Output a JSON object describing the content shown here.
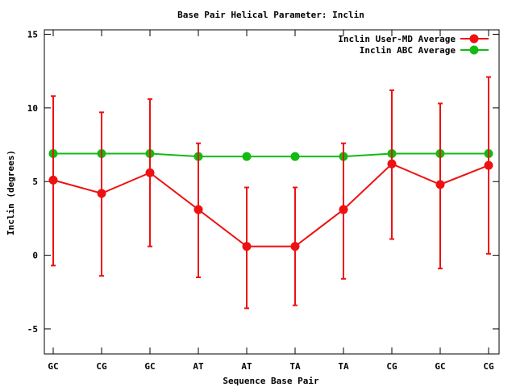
{
  "chart_data": {
    "type": "line",
    "title": "Base Pair Helical Parameter: Inclin",
    "xlabel": "Sequence Base Pair",
    "ylabel": "Inclin (degrees)",
    "categories": [
      "GC",
      "CG",
      "GC",
      "AT",
      "AT",
      "TA",
      "TA",
      "CG",
      "GC",
      "CG"
    ],
    "ylim": [
      -6.7,
      15.3
    ],
    "yticks": [
      -5,
      0,
      5,
      10,
      15
    ],
    "yticklabels": [
      "-5",
      "0",
      "5",
      "10",
      "15"
    ],
    "grid": false,
    "legend": "top-right",
    "series": [
      {
        "name": "Inclin User-MD Average",
        "color": "#ee1111",
        "values": [
          5.1,
          4.2,
          5.6,
          3.1,
          0.6,
          0.6,
          3.1,
          6.2,
          4.8,
          6.1
        ],
        "err_low": [
          -0.7,
          -1.4,
          0.6,
          -1.5,
          -3.6,
          -3.4,
          -1.6,
          1.1,
          -0.9,
          0.1
        ],
        "err_high": [
          10.8,
          9.7,
          10.6,
          7.6,
          4.6,
          4.6,
          7.6,
          11.2,
          10.3,
          12.1
        ]
      },
      {
        "name": "Inclin ABC Average",
        "color": "#11bb11",
        "values": [
          6.9,
          6.9,
          6.9,
          6.7,
          6.7,
          6.7,
          6.7,
          6.9,
          6.9,
          6.9
        ]
      }
    ]
  }
}
